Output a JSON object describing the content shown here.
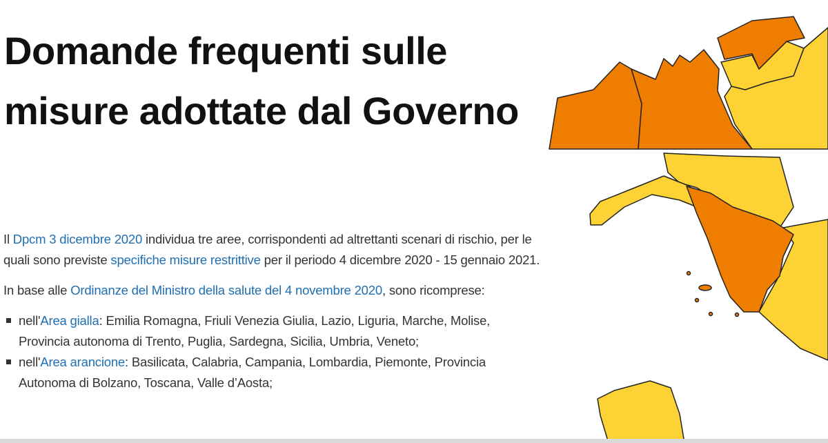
{
  "title": "Domande frequenti sulle misure adottate dal Governo",
  "paragraph1": {
    "pre": "Il ",
    "link1": "Dpcm 3 dicembre 2020",
    "mid": " individua tre aree, corrispondenti ad altrettanti scenari di rischio, per le quali sono previste ",
    "link2": "specifiche misure restrittive",
    "post": " per il periodo 4 dicembre 2020 - 15 gennaio 2021."
  },
  "paragraph2": {
    "pre": "In base alle ",
    "link": "Ordinanze del Ministro della salute del 4 novembre 2020",
    "post": ", sono ricomprese:"
  },
  "list": [
    {
      "pre": "nell'",
      "link": "Area gialla",
      "text": ": Emilia Romagna, Friuli Venezia Giulia, Lazio, Liguria, Marche, Molise, Provincia autonoma di Trento, Puglia, Sardegna, Sicilia, Umbria, Veneto;"
    },
    {
      "pre": "nell'",
      "link": "Area arancione",
      "text": ": Basilicata, Calabria, Campania, Lombardia, Piemonte, Provincia Autonoma di Bolzano, Toscana, Valle d’Aosta;"
    }
  ],
  "colors": {
    "orange_zone": "#ef7d00",
    "yellow_zone": "#fdd235",
    "link": "#1f6fb2"
  }
}
